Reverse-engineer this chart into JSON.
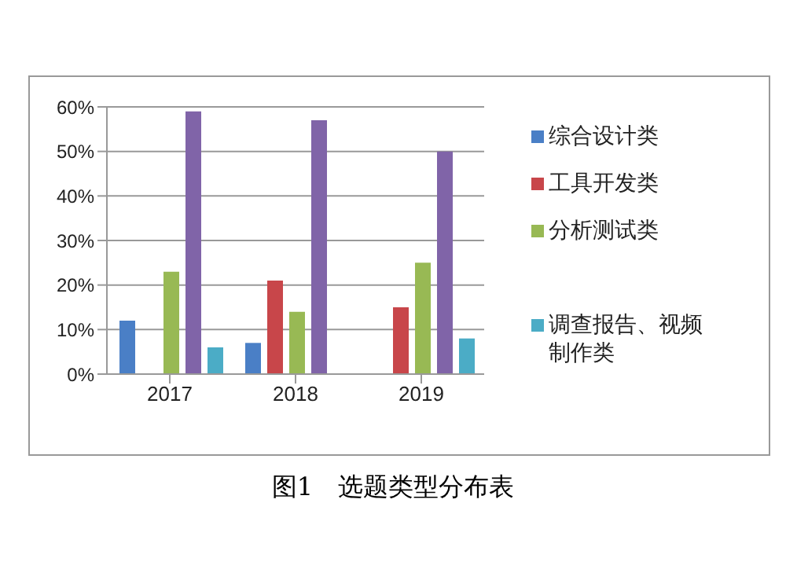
{
  "chart_data": {
    "type": "bar",
    "title": "图1　选题类型分布表",
    "categories": [
      "2017",
      "2018",
      "2019"
    ],
    "series": [
      {
        "name": "综合设计类",
        "color": "#4a7fc6",
        "values": [
          12,
          7,
          0
        ]
      },
      {
        "name": "工具开发类",
        "color": "#c8464a",
        "values": [
          0,
          21,
          15
        ]
      },
      {
        "name": "分析测试类",
        "color": "#98b954",
        "values": [
          23,
          14,
          25
        ]
      },
      {
        "color": "#8064a8",
        "values": [
          59,
          57,
          50
        ]
      },
      {
        "name": "调查报告、视频制作类",
        "color": "#4bacc6",
        "values": [
          6,
          0,
          8
        ]
      }
    ],
    "ylim": [
      0,
      60
    ],
    "yticks": [
      {
        "value": 0,
        "label": "0%"
      },
      {
        "value": 10,
        "label": "10%"
      },
      {
        "value": 20,
        "label": "20%"
      },
      {
        "value": 30,
        "label": "30%"
      },
      {
        "value": 40,
        "label": "40%"
      },
      {
        "value": 50,
        "label": "50%"
      },
      {
        "value": 60,
        "label": "60%"
      }
    ],
    "grid": "y",
    "legend": "right"
  }
}
